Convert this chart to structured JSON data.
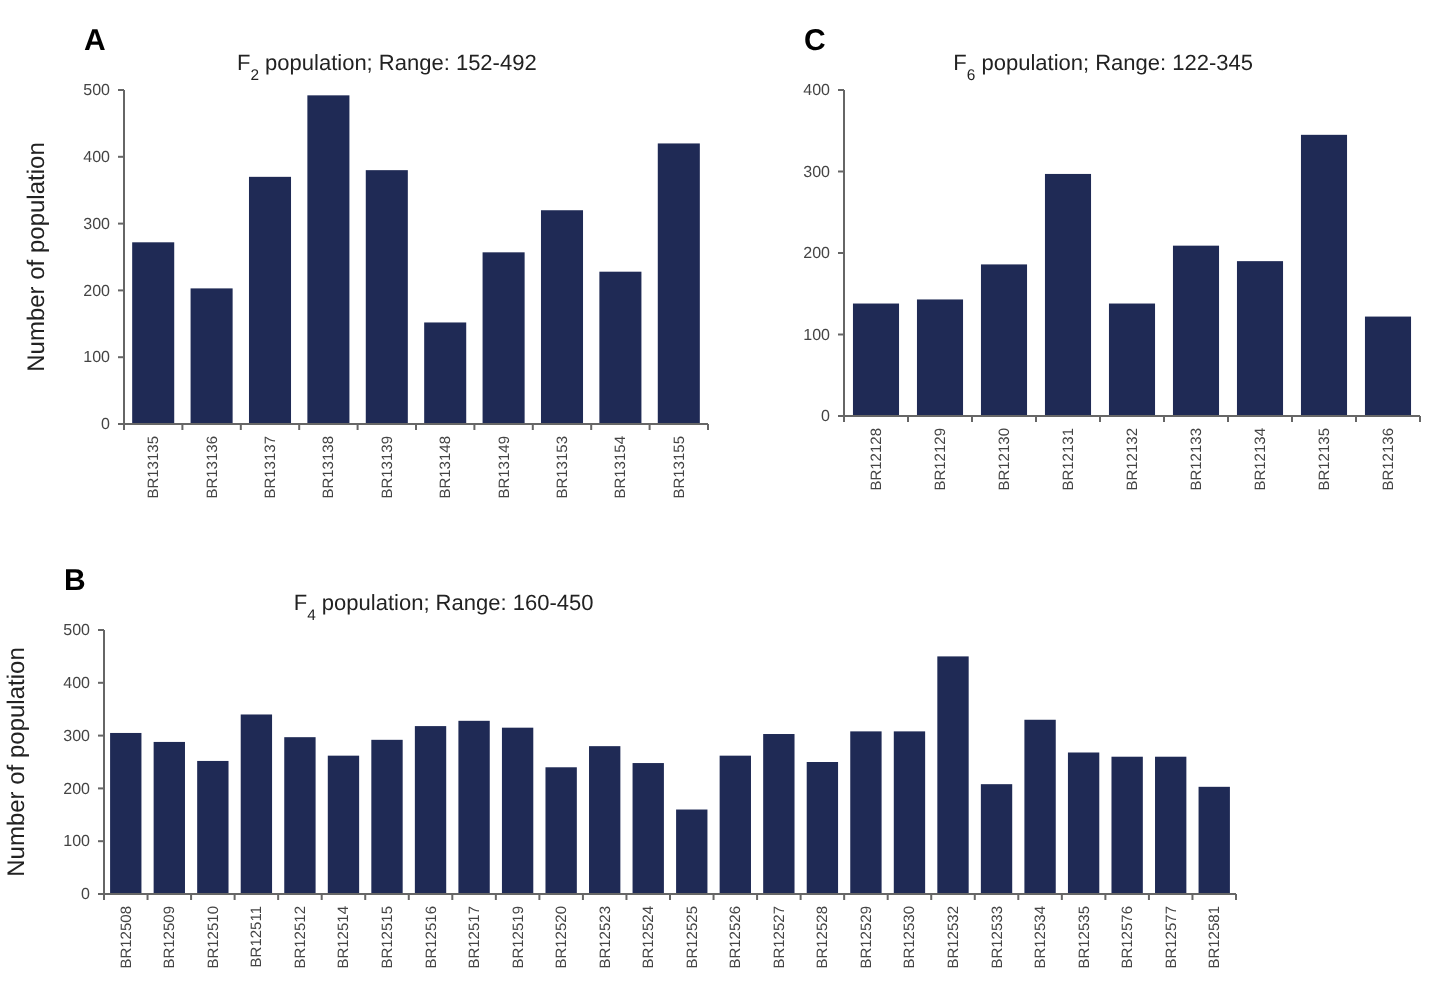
{
  "chart_data": [
    {
      "type": "bar",
      "title": "F$_{2}$ population; Range: 152-492",
      "ylabel": "Number of population",
      "annotations": [
        "A"
      ],
      "categories": [
        "BR13135",
        "BR13136",
        "BR13137",
        "BR13138",
        "BR13139",
        "BR13148",
        "BR13149",
        "BR13153",
        "BR13154",
        "BR13155"
      ],
      "values": [
        272,
        203,
        370,
        492,
        380,
        152,
        257,
        320,
        228,
        420
      ],
      "color": "#1f2a55",
      "ylim": [
        0,
        500
      ],
      "yticks": [
        0,
        100,
        200,
        300,
        400,
        500
      ],
      "grid": false
    },
    {
      "type": "bar",
      "title": "F$_{6}$ population; Range: 122-345",
      "annotations": [
        "C"
      ],
      "categories": [
        "BR12128",
        "BR12129",
        "BR12130",
        "BR12131",
        "BR12132",
        "BR12133",
        "BR12134",
        "BR12135",
        "BR12136"
      ],
      "values": [
        138,
        143,
        186,
        297,
        138,
        209,
        190,
        345,
        122
      ],
      "color": "#1f2a55",
      "ylim": [
        0,
        400
      ],
      "yticks": [
        0,
        100,
        200,
        300,
        400
      ],
      "grid": false
    },
    {
      "type": "bar",
      "title": "F$_{4}$ population; Range: 160-450",
      "ylabel": "Number of population",
      "annotations": [
        "B"
      ],
      "categories": [
        "BR12508",
        "BR12509",
        "BR12510",
        "BR12511",
        "BR12512",
        "BR12514",
        "BR12515",
        "BR12516",
        "BR12517",
        "BR12519",
        "BR12520",
        "BR12523",
        "BR12524",
        "BR12525",
        "BR12526",
        "BR12527",
        "BR12528",
        "BR12529",
        "BR12530",
        "BR12532",
        "BR12533",
        "BR12534",
        "BR12535",
        "BR12576",
        "BR12577",
        "BR12581"
      ],
      "values": [
        305,
        288,
        252,
        340,
        297,
        262,
        292,
        318,
        328,
        315,
        240,
        280,
        248,
        160,
        262,
        303,
        250,
        308,
        308,
        450,
        208,
        330,
        268,
        260,
        260,
        203
      ],
      "color": "#1f2a55",
      "ylim": [
        0,
        500
      ],
      "yticks": [
        0,
        100,
        200,
        300,
        400,
        500
      ],
      "grid": false
    }
  ]
}
